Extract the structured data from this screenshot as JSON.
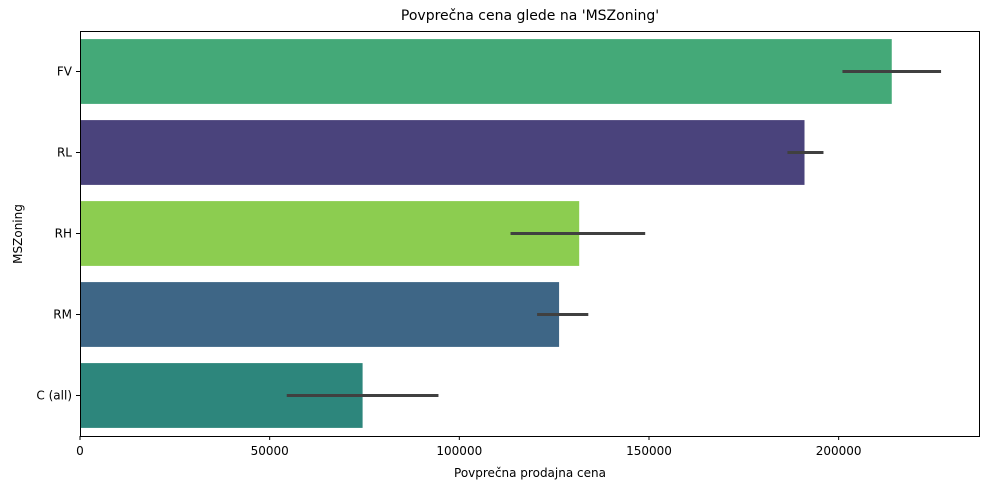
{
  "chart_data": {
    "type": "bar",
    "orientation": "horizontal",
    "title": "Povprečna cena glede na 'MSZoning'",
    "xlabel": "Povprečna prodajna cena",
    "ylabel": "MSZoning",
    "xlim": [
      0,
      237000
    ],
    "xticks": [
      0,
      50000,
      100000,
      150000,
      200000
    ],
    "xtick_labels": [
      "0",
      "50000",
      "100000",
      "150000",
      "200000"
    ],
    "grid": false,
    "legend": "none",
    "categories": [
      "FV",
      "RL",
      "RH",
      "RM",
      "C (all)"
    ],
    "values": [
      214000,
      191000,
      131600,
      126300,
      74500
    ],
    "error_low": [
      201000,
      186500,
      113500,
      120500,
      54500
    ],
    "error_high": [
      227000,
      196000,
      149000,
      134000,
      94500
    ],
    "colors": [
      "#44a978",
      "#4a437c",
      "#8ccd50",
      "#3e6686",
      "#2d867c"
    ],
    "error_color": "#404040"
  }
}
